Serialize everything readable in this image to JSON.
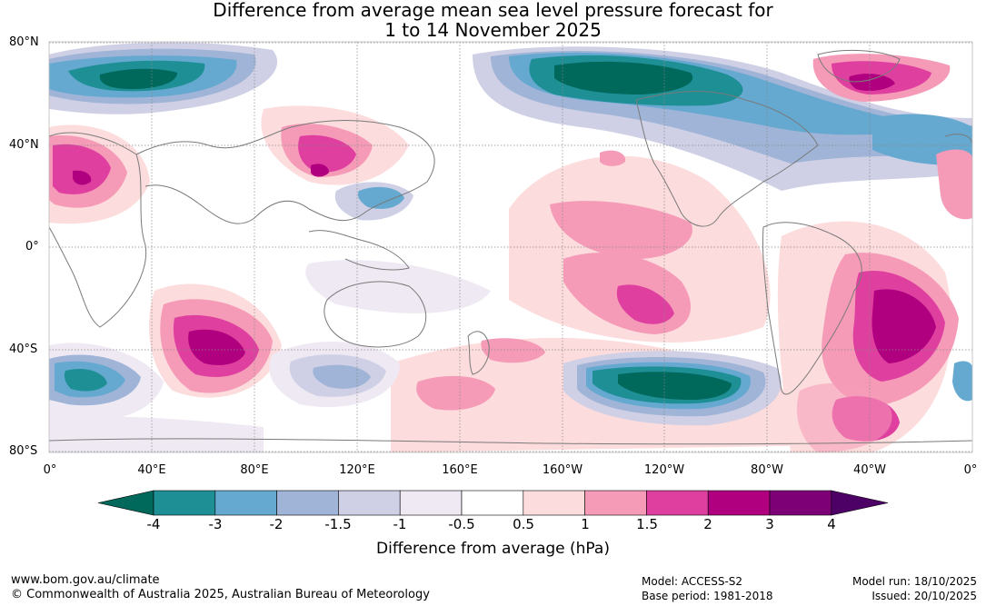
{
  "title": {
    "line1": "Difference from average mean sea level pressure forecast for",
    "line2": "1 to 14 November 2025"
  },
  "map": {
    "lat_labels": [
      "80°N",
      "40°N",
      "0°",
      "40°S",
      "80°S"
    ],
    "lon_labels": [
      "0°",
      "40°E",
      "80°E",
      "120°E",
      "160°E",
      "160°W",
      "120°W",
      "80°W",
      "40°W",
      "0°"
    ]
  },
  "colorbar": {
    "title": "Difference from average (hPa)",
    "tick_labels": [
      "-4",
      "-3",
      "-2",
      "-1.5",
      "-1",
      "-0.5",
      "0.5",
      "1",
      "1.5",
      "2",
      "3",
      "4"
    ],
    "colors": {
      "below_min": "#00695c",
      "bins": [
        "#1f8f96",
        "#65a8d0",
        "#9fb4d6",
        "#cfd0e6",
        "#efe9f3",
        "#ffffff",
        "#fcdcdc",
        "#f59bb8",
        "#df3f9f",
        "#b0007f",
        "#7e0077"
      ],
      "above_max": "#4d0066"
    }
  },
  "footer": {
    "website": "www.bom.gov.au/climate",
    "copyright": "© Commonwealth of Australia 2025, Australian Bureau of Meteorology",
    "model": "Model: ACCESS-S2",
    "base_period": "Base period: 1981-2018",
    "model_run": "Model run: 18/10/2025",
    "issued": "Issued: 20/10/2025"
  }
}
